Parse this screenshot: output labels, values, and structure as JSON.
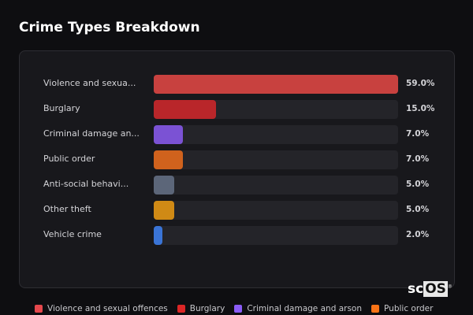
{
  "title": "Crime Types Breakdown",
  "chart_data": {
    "type": "bar",
    "orientation": "horizontal",
    "title": "Crime Types Breakdown",
    "categories": [
      "Violence and sexua...",
      "Burglary",
      "Criminal damage an...",
      "Public order",
      "Anti-social behavi...",
      "Other theft",
      "Vehicle crime"
    ],
    "values": [
      59.0,
      15.0,
      7.0,
      7.0,
      5.0,
      5.0,
      2.0
    ],
    "value_labels": [
      "59.0%",
      "15.0%",
      "7.0%",
      "7.0%",
      "5.0%",
      "5.0%",
      "2.0%"
    ],
    "colors": [
      "#c8413f",
      "#b9262a",
      "#7b52d4",
      "#d0621d",
      "#5c6679",
      "#d08a15",
      "#3a74d6"
    ],
    "unit": "%",
    "legend": [
      {
        "label": "Violence and sexual offences",
        "color": "#e5484d"
      },
      {
        "label": "Burglary",
        "color": "#dc2626"
      },
      {
        "label": "Criminal damage and arson",
        "color": "#8b5cf6"
      },
      {
        "label": "Public order",
        "color": "#f97316"
      }
    ],
    "legend_position": "bottom"
  },
  "logo": {
    "text_a": "sc",
    "text_b": "OS",
    "mark": "®"
  }
}
